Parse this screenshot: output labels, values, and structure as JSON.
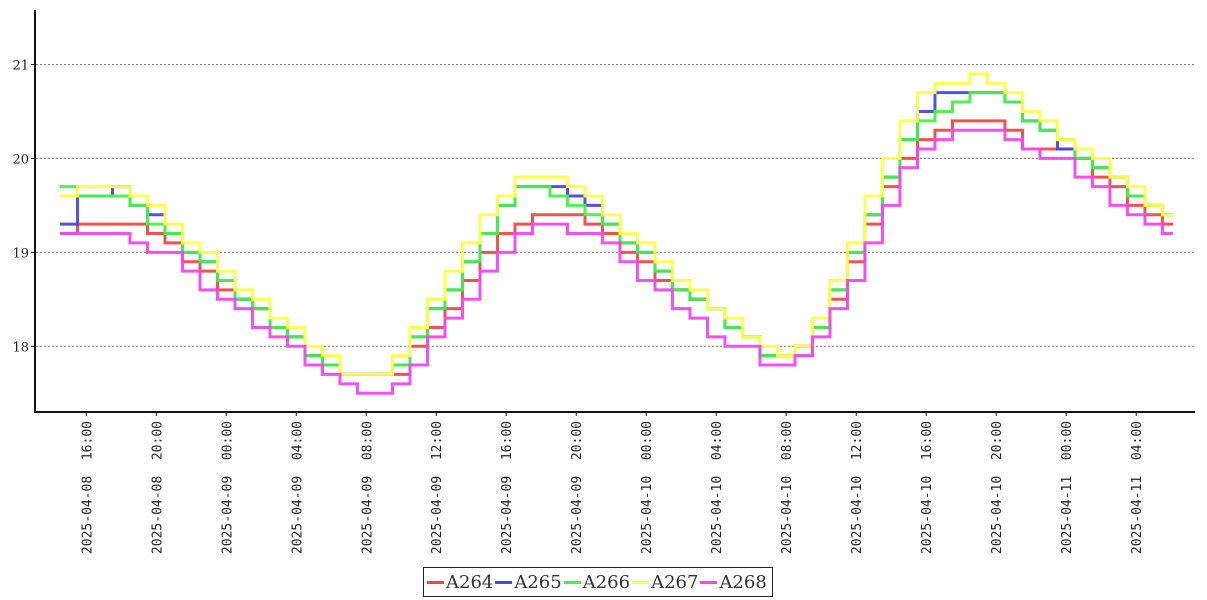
{
  "chart_data": {
    "type": "line",
    "line_style": "step",
    "title": "",
    "xlabel": "",
    "ylabel": "",
    "x_start": "2025-04-08 14:30",
    "x_step_hours": 1,
    "x_range_hours": [
      -1.43,
      64.86
    ],
    "ylim": [
      17.3,
      21.58
    ],
    "yticks": [
      18,
      19,
      20,
      21
    ],
    "ytick_labels": [
      "18",
      "19",
      "20",
      "21"
    ],
    "grid": "horizontal dashed",
    "xtick_hours": [
      1.5,
      5.5,
      9.5,
      13.5,
      17.5,
      21.5,
      25.5,
      29.5,
      33.5,
      37.5,
      41.5,
      45.5,
      49.5,
      53.5,
      57.5,
      61.5
    ],
    "xtick_labels": [
      "2025-04-08  16:00",
      "2025-04-08  20:00",
      "2025-04-09  00:00",
      "2025-04-09  04:00",
      "2025-04-09  08:00",
      "2025-04-09  12:00",
      "2025-04-09  16:00",
      "2025-04-09  20:00",
      "2025-04-10  00:00",
      "2025-04-10  04:00",
      "2025-04-10  08:00",
      "2025-04-10  12:00",
      "2025-04-10  16:00",
      "2025-04-10  20:00",
      "2025-04-11  00:00",
      "2025-04-11  04:00"
    ],
    "legend_position": "bottom-center",
    "series": [
      {
        "name": "A264",
        "color": "#f04848",
        "values": [
          19.2,
          19.3,
          19.3,
          19.3,
          19.3,
          19.2,
          19.1,
          18.9,
          18.8,
          18.6,
          18.5,
          18.4,
          18.2,
          18.1,
          17.9,
          17.8,
          17.7,
          17.7,
          17.7,
          17.7,
          18.0,
          18.2,
          18.4,
          18.7,
          19.0,
          19.2,
          19.3,
          19.4,
          19.4,
          19.4,
          19.3,
          19.2,
          19.0,
          18.9,
          18.7,
          18.6,
          18.5,
          18.4,
          18.2,
          18.1,
          17.9,
          17.9,
          18.0,
          18.2,
          18.5,
          18.9,
          19.3,
          19.7,
          20.0,
          20.2,
          20.3,
          20.4,
          20.4,
          20.4,
          20.3,
          20.1,
          20.1,
          20.1,
          20.0,
          19.8,
          19.7,
          19.5,
          19.4,
          19.3
        ]
      },
      {
        "name": "A265",
        "color": "#4848e0",
        "values": [
          19.3,
          19.6,
          19.6,
          19.7,
          19.5,
          19.4,
          19.2,
          19.0,
          18.9,
          18.7,
          18.5,
          18.4,
          18.2,
          18.1,
          17.9,
          17.8,
          17.7,
          17.7,
          17.7,
          17.8,
          18.1,
          18.4,
          18.6,
          18.9,
          19.2,
          19.5,
          19.7,
          19.7,
          19.7,
          19.6,
          19.5,
          19.3,
          19.1,
          19.0,
          18.8,
          18.6,
          18.5,
          18.4,
          18.2,
          18.1,
          17.9,
          17.9,
          17.9,
          18.2,
          18.6,
          19.0,
          19.4,
          19.8,
          20.2,
          20.5,
          20.7,
          20.7,
          20.7,
          20.7,
          20.6,
          20.4,
          20.3,
          20.1,
          20.0,
          19.9,
          19.8,
          19.6,
          19.5,
          19.4
        ]
      },
      {
        "name": "A266",
        "color": "#48f048",
        "values": [
          19.7,
          19.6,
          19.6,
          19.6,
          19.5,
          19.3,
          19.2,
          19.0,
          18.9,
          18.7,
          18.5,
          18.4,
          18.2,
          18.1,
          17.9,
          17.8,
          17.7,
          17.7,
          17.7,
          17.8,
          18.1,
          18.4,
          18.6,
          18.9,
          19.2,
          19.5,
          19.7,
          19.7,
          19.6,
          19.5,
          19.4,
          19.3,
          19.1,
          19.0,
          18.8,
          18.6,
          18.5,
          18.4,
          18.2,
          18.1,
          17.9,
          17.9,
          17.9,
          18.2,
          18.6,
          19.0,
          19.4,
          19.8,
          20.2,
          20.4,
          20.5,
          20.6,
          20.7,
          20.7,
          20.6,
          20.4,
          20.3,
          20.2,
          20.0,
          19.9,
          19.8,
          19.6,
          19.5,
          19.4
        ]
      },
      {
        "name": "A267",
        "color": "#ffff48",
        "values": [
          19.6,
          19.7,
          19.7,
          19.7,
          19.6,
          19.5,
          19.3,
          19.1,
          19.0,
          18.8,
          18.6,
          18.5,
          18.3,
          18.2,
          18.0,
          17.9,
          17.7,
          17.7,
          17.7,
          17.9,
          18.2,
          18.5,
          18.8,
          19.1,
          19.4,
          19.6,
          19.8,
          19.8,
          19.8,
          19.7,
          19.6,
          19.4,
          19.2,
          19.1,
          18.9,
          18.7,
          18.6,
          18.4,
          18.3,
          18.1,
          18.0,
          17.9,
          18.0,
          18.3,
          18.7,
          19.1,
          19.6,
          20.0,
          20.4,
          20.7,
          20.8,
          20.8,
          20.9,
          20.8,
          20.7,
          20.5,
          20.4,
          20.2,
          20.1,
          20.0,
          19.8,
          19.7,
          19.5,
          19.4
        ]
      },
      {
        "name": "A268",
        "color": "#f048f0",
        "values": [
          19.2,
          19.2,
          19.2,
          19.2,
          19.1,
          19.0,
          19.0,
          18.8,
          18.6,
          18.5,
          18.4,
          18.2,
          18.1,
          18.0,
          17.8,
          17.7,
          17.6,
          17.5,
          17.5,
          17.6,
          17.8,
          18.1,
          18.3,
          18.5,
          18.8,
          19.0,
          19.2,
          19.3,
          19.3,
          19.2,
          19.2,
          19.1,
          18.9,
          18.7,
          18.6,
          18.4,
          18.3,
          18.1,
          18.0,
          18.0,
          17.8,
          17.8,
          17.9,
          18.1,
          18.4,
          18.7,
          19.1,
          19.5,
          19.9,
          20.1,
          20.2,
          20.3,
          20.3,
          20.3,
          20.2,
          20.1,
          20.0,
          20.0,
          19.8,
          19.7,
          19.5,
          19.4,
          19.3,
          19.2
        ]
      }
    ]
  }
}
